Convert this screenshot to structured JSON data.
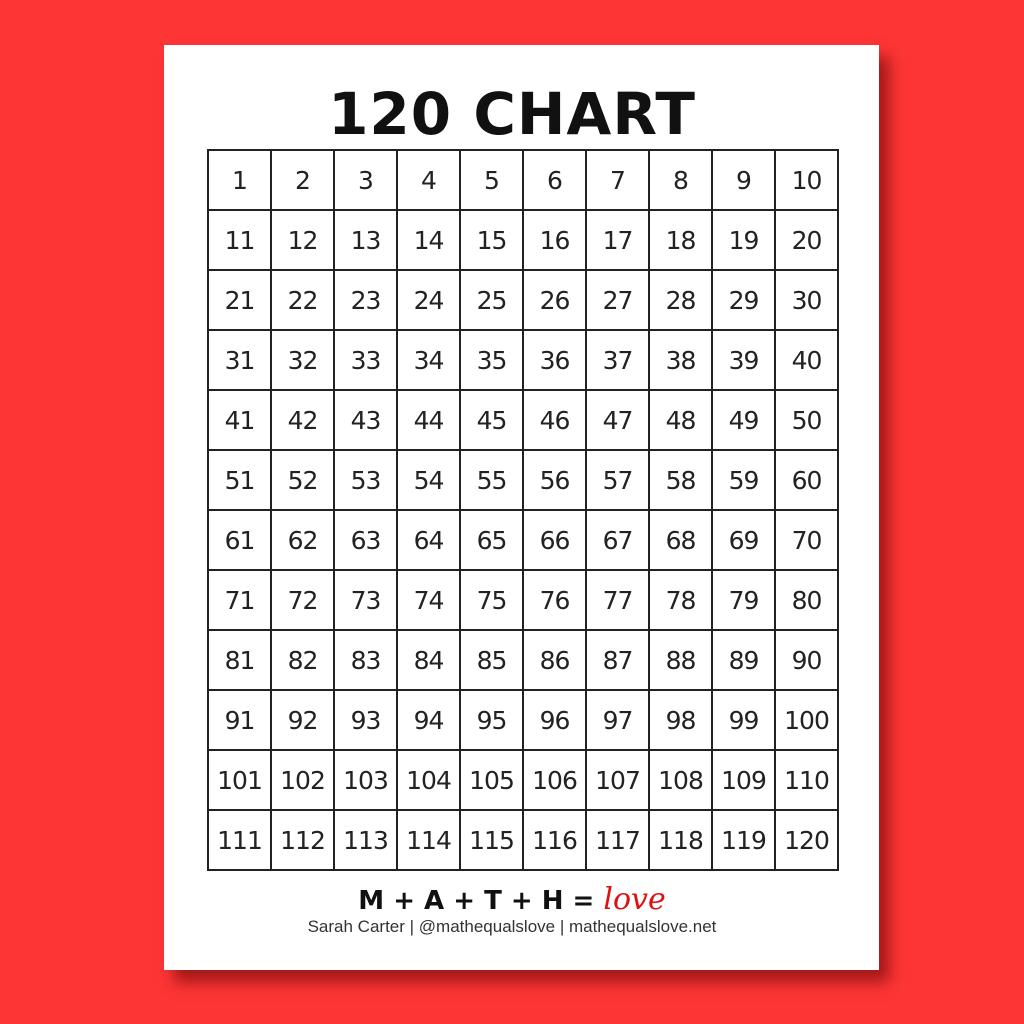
{
  "title": "120 CHART",
  "rows": [
    [
      1,
      2,
      3,
      4,
      5,
      6,
      7,
      8,
      9,
      10
    ],
    [
      11,
      12,
      13,
      14,
      15,
      16,
      17,
      18,
      19,
      20
    ],
    [
      21,
      22,
      23,
      24,
      25,
      26,
      27,
      28,
      29,
      30
    ],
    [
      31,
      32,
      33,
      34,
      35,
      36,
      37,
      38,
      39,
      40
    ],
    [
      41,
      42,
      43,
      44,
      45,
      46,
      47,
      48,
      49,
      50
    ],
    [
      51,
      52,
      53,
      54,
      55,
      56,
      57,
      58,
      59,
      60
    ],
    [
      61,
      62,
      63,
      64,
      65,
      66,
      67,
      68,
      69,
      70
    ],
    [
      71,
      72,
      73,
      74,
      75,
      76,
      77,
      78,
      79,
      80
    ],
    [
      81,
      82,
      83,
      84,
      85,
      86,
      87,
      88,
      89,
      90
    ],
    [
      91,
      92,
      93,
      94,
      95,
      96,
      97,
      98,
      99,
      100
    ],
    [
      101,
      102,
      103,
      104,
      105,
      106,
      107,
      108,
      109,
      110
    ],
    [
      111,
      112,
      113,
      114,
      115,
      116,
      117,
      118,
      119,
      120
    ]
  ],
  "footer": {
    "logo_text": "M + A + T + H = ",
    "logo_love": "love",
    "credit": "Sarah Carter | @mathequalslove | mathequalslove.net"
  },
  "colors": {
    "background": "#fd3535",
    "love": "#d11111"
  }
}
